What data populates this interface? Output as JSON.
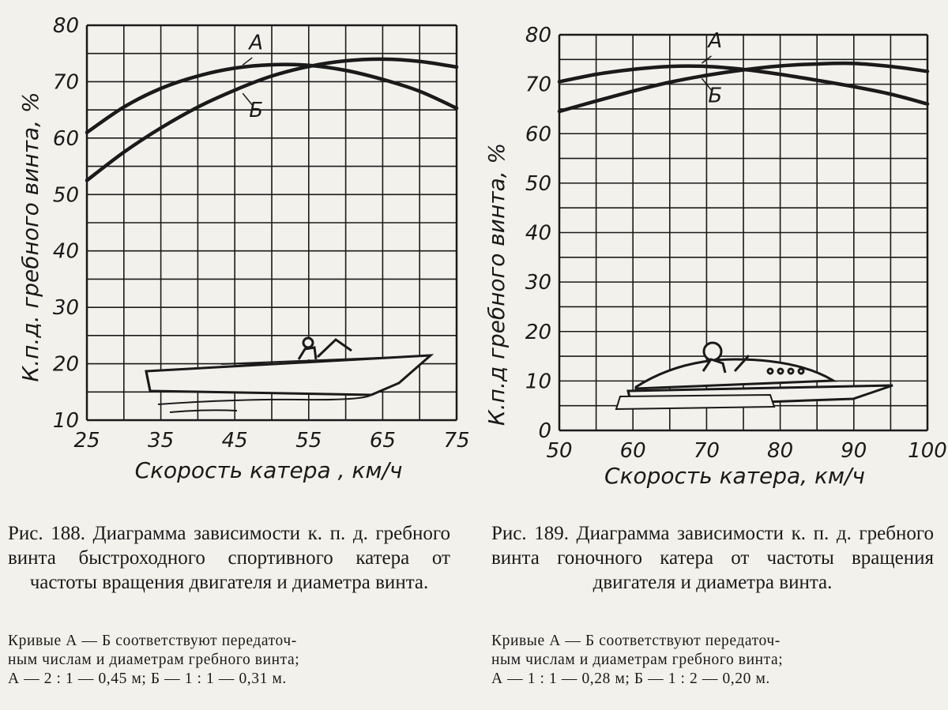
{
  "chart_data": [
    {
      "type": "line",
      "figure": "188",
      "xlabel": "Скорость катера , км/ч",
      "ylabel": "К.п.д. гребного винта, %",
      "xlim": [
        25,
        75
      ],
      "ylim": [
        10,
        80
      ],
      "xticks": [
        25,
        35,
        45,
        55,
        65,
        75
      ],
      "yticks": [
        10,
        20,
        30,
        40,
        50,
        60,
        70,
        80
      ],
      "grid": true,
      "series": [
        {
          "name": "А",
          "x": [
            25,
            30,
            35,
            40,
            45,
            50,
            55,
            60,
            65,
            70,
            75
          ],
          "y": [
            61,
            65.5,
            68.8,
            71,
            72.4,
            73,
            72.9,
            72,
            70.4,
            68.3,
            65.3
          ]
        },
        {
          "name": "Б",
          "x": [
            25,
            30,
            35,
            40,
            45,
            50,
            55,
            60,
            65,
            70,
            75
          ],
          "y": [
            52.5,
            57.5,
            61.8,
            65.5,
            68.5,
            71,
            72.7,
            73.7,
            74,
            73.6,
            72.6
          ]
        }
      ]
    },
    {
      "type": "line",
      "figure": "189",
      "xlabel": "Скорость катера, км/ч",
      "ylabel": "К.п.д гребного винта, %",
      "xlim": [
        50,
        100
      ],
      "ylim": [
        0,
        80
      ],
      "xticks": [
        50,
        60,
        70,
        80,
        90,
        100
      ],
      "yticks": [
        0,
        10,
        20,
        30,
        40,
        50,
        60,
        70,
        80
      ],
      "grid": true,
      "series": [
        {
          "name": "А",
          "x": [
            50,
            55,
            60,
            65,
            70,
            75,
            80,
            85,
            90,
            95,
            100
          ],
          "y": [
            70.5,
            72,
            73,
            73.6,
            73.6,
            73,
            72,
            70.8,
            69.5,
            68,
            66
          ]
        },
        {
          "name": "Б",
          "x": [
            50,
            55,
            60,
            65,
            70,
            75,
            80,
            85,
            90,
            95,
            100
          ],
          "y": [
            64.5,
            66.6,
            68.6,
            70.4,
            71.8,
            72.9,
            73.7,
            74.1,
            74.2,
            73.6,
            72.6
          ]
        }
      ]
    }
  ],
  "captions": [
    {
      "title": "Рис. 188. Диаграмма зависимости к. п. д. гребного винта быстроходного спортивного катера от частоты вращения двигателя и диаметра винта.",
      "note_lines": [
        "Кривые А — Б соответствуют передаточ-",
        "ным числам и диаметрам гребного винта;",
        "А — 2 : 1 — 0,45 м; Б — 1 : 1 — 0,31 м."
      ]
    },
    {
      "title": "Рис. 189. Диаграмма зависимости к. п. д. гребного винта гоночного катера от частоты вращения двигателя и диаметра винта.",
      "note_lines": [
        "Кривые А — Б соответствуют передаточ-",
        "ным числам и диаметрам гребного винта;",
        "А — 1 : 1 — 0,28 м; Б — 1 : 2 — 0,20 м."
      ]
    }
  ]
}
